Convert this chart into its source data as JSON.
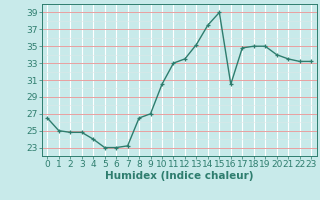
{
  "x": [
    0,
    1,
    2,
    3,
    4,
    5,
    6,
    7,
    8,
    9,
    10,
    11,
    12,
    13,
    14,
    15,
    16,
    17,
    18,
    19,
    20,
    21,
    22,
    23
  ],
  "y": [
    26.5,
    25.0,
    24.8,
    24.8,
    24.0,
    23.0,
    23.0,
    23.2,
    26.5,
    27.0,
    30.5,
    33.0,
    33.5,
    35.2,
    37.5,
    39.0,
    30.5,
    34.8,
    35.0,
    35.0,
    34.0,
    33.5,
    33.2,
    33.2
  ],
  "line_color": "#2e7d6e",
  "marker": "+",
  "bg_color": "#c8eaea",
  "grid_major_x_color": "#ffffff",
  "grid_major_y_color": "#e8a0a0",
  "grid_minor_color": "#dde8e8",
  "xlabel": "Humidex (Indice chaleur)",
  "ylabel_ticks": [
    23,
    25,
    27,
    29,
    31,
    33,
    35,
    37,
    39
  ],
  "xlabel_ticks": [
    0,
    1,
    2,
    3,
    4,
    5,
    6,
    7,
    8,
    9,
    10,
    11,
    12,
    13,
    14,
    15,
    16,
    17,
    18,
    19,
    20,
    21,
    22,
    23
  ],
  "ylim": [
    22.0,
    40.0
  ],
  "xlim": [
    -0.5,
    23.5
  ],
  "font_color": "#2e7d6e",
  "linewidth": 1.0,
  "markersize": 3.5,
  "tick_fontsize": 6.5,
  "xlabel_fontsize": 7.5
}
